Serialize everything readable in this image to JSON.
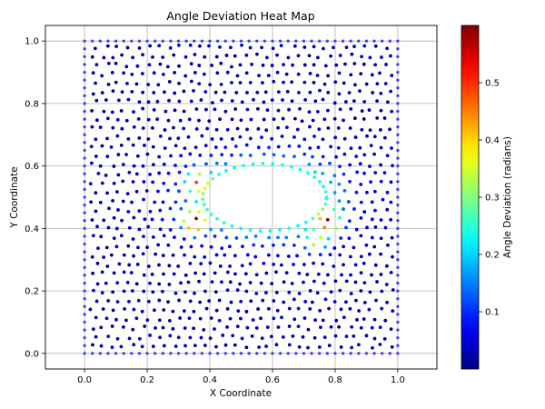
{
  "chart_data": {
    "type": "scatter",
    "title": "Angle Deviation Heat Map",
    "xlabel": "X Coordinate",
    "ylabel": "Y Coordinate",
    "xlim": [
      -0.125,
      1.125
    ],
    "ylim": [
      -0.05,
      1.05
    ],
    "x_ticks": [
      "0.0",
      "0.2",
      "0.4",
      "0.6",
      "0.8",
      "1.0"
    ],
    "y_ticks": [
      "0.0",
      "0.2",
      "0.4",
      "0.6",
      "0.8",
      "1.0"
    ],
    "grid": true,
    "colormap": "jet",
    "colorbar": {
      "label": "Angle Deviation (radians)",
      "range": [
        0.0,
        0.6
      ],
      "ticks": [
        "0.1",
        "0.2",
        "0.3",
        "0.4",
        "0.5"
      ]
    },
    "hole": {
      "type": "ellipse",
      "cx": 0.575,
      "cy": 0.5,
      "rx": 0.19,
      "ry": 0.1
    },
    "points_description_seed": 7,
    "field": {
      "boundary_spacing": 0.025,
      "interior_spacing": 0.033,
      "hotspots": [
        {
          "x": 0.35,
          "y": 0.42,
          "value": 0.55
        },
        {
          "x": 0.78,
          "y": 0.42,
          "value": 0.45
        },
        {
          "x": 0.36,
          "y": 0.55,
          "value": 0.32
        },
        {
          "x": 0.74,
          "y": 0.36,
          "value": 0.3
        }
      ]
    }
  },
  "colors": {
    "point_edge": "#000080",
    "grid": "#b0b0b0",
    "boundary_point": "#3a3aff"
  }
}
